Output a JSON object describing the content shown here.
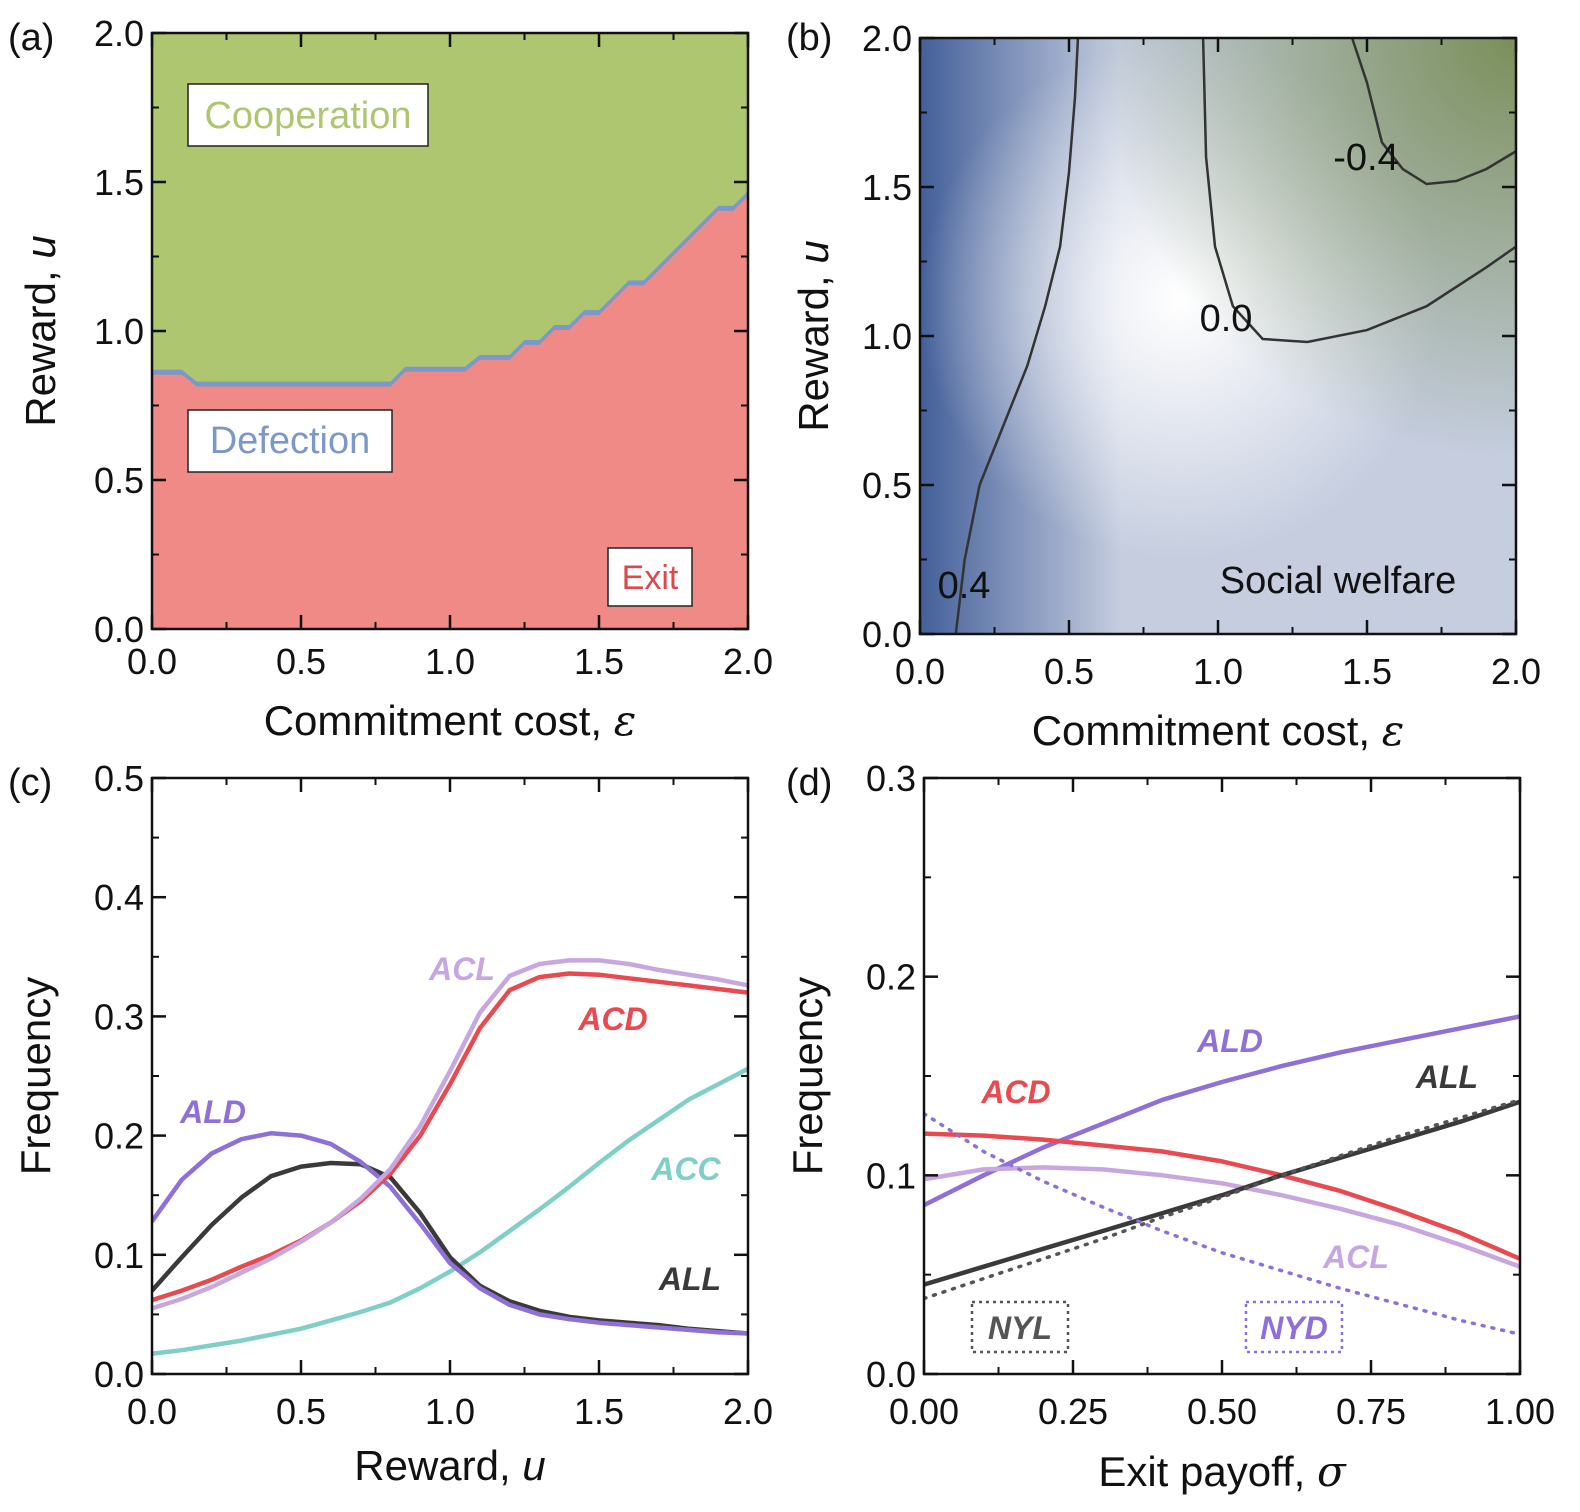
{
  "chart_data": [
    {
      "panel": "(a)",
      "type": "area",
      "xlabel": "Commitment cost, ",
      "xsymbol": "ε",
      "ylabel": "Reward, ",
      "ysymbol": "u",
      "xlim": [
        0,
        2
      ],
      "ylim": [
        0,
        2
      ],
      "xticks": [
        "0.0",
        "0.5",
        "1.0",
        "1.5",
        "2.0"
      ],
      "yticks": [
        "0.0",
        "0.5",
        "1.0",
        "1.5",
        "2.0"
      ],
      "regions": [
        {
          "name": "Cooperation",
          "color": "#aec66f",
          "label_color": "#aec66f"
        },
        {
          "name": "Defection",
          "color": "#7b98c9",
          "label_color": "#7b98c9"
        },
        {
          "name": "Exit",
          "color": "#f08a87",
          "label_color": "#e0474a"
        }
      ],
      "boundary": {
        "x": [
          0,
          0.1,
          0.15,
          0.8,
          0.85,
          1.05,
          1.1,
          1.2,
          1.25,
          1.3,
          1.35,
          1.4,
          1.45,
          1.5,
          1.55,
          1.6,
          1.65,
          1.7,
          1.75,
          1.8,
          1.85,
          1.9,
          1.95,
          2.0
        ],
        "y": [
          0.87,
          0.87,
          0.83,
          0.83,
          0.88,
          0.88,
          0.92,
          0.92,
          0.97,
          0.97,
          1.02,
          1.02,
          1.07,
          1.07,
          1.12,
          1.17,
          1.17,
          1.22,
          1.27,
          1.32,
          1.37,
          1.42,
          1.42,
          1.47
        ]
      }
    },
    {
      "panel": "(b)",
      "type": "heatmap",
      "title": "Social welfare",
      "xlabel": "Commitment cost, ",
      "xsymbol": "ε",
      "ylabel": "Reward, ",
      "ysymbol": "u",
      "xlim": [
        0,
        2
      ],
      "ylim": [
        0,
        2
      ],
      "xticks": [
        "0.0",
        "0.5",
        "1.0",
        "1.5",
        "2.0"
      ],
      "yticks": [
        "0.0",
        "0.5",
        "1.0",
        "1.5",
        "2.0"
      ],
      "colormap": {
        "positive": "#3d5a96",
        "zero": "#ffffff",
        "negative": "#7a8f5a"
      },
      "contours": [
        {
          "level": "0.4",
          "x": [
            0.12,
            0.15,
            0.2,
            0.28,
            0.36,
            0.42,
            0.47,
            0.5,
            0.52,
            0.53
          ],
          "y": [
            0.0,
            0.25,
            0.5,
            0.7,
            0.9,
            1.1,
            1.3,
            1.55,
            1.8,
            2.0
          ]
        },
        {
          "level": "0.0",
          "x": [
            0.95,
            0.96,
            0.99,
            1.05,
            1.15,
            1.3,
            1.5,
            1.7,
            1.9,
            2.0
          ],
          "y": [
            2.0,
            1.6,
            1.3,
            1.1,
            0.99,
            0.98,
            1.02,
            1.1,
            1.23,
            1.3
          ]
        },
        {
          "level": "-0.4",
          "x": [
            1.45,
            1.5,
            1.55,
            1.62,
            1.7,
            1.8,
            1.9,
            2.0
          ],
          "y": [
            2.0,
            1.85,
            1.65,
            1.56,
            1.51,
            1.52,
            1.56,
            1.62
          ]
        }
      ],
      "contour_labels": [
        "0.4",
        "0.0",
        "-0.4"
      ]
    },
    {
      "panel": "(c)",
      "type": "line",
      "xlabel": "Reward, ",
      "xsymbol": "u",
      "ylabel": "Frequency",
      "xlim": [
        0,
        2
      ],
      "ylim": [
        0,
        0.5
      ],
      "xticks": [
        "0.0",
        "0.5",
        "1.0",
        "1.5",
        "2.0"
      ],
      "yticks": [
        "0.0",
        "0.1",
        "0.2",
        "0.3",
        "0.4",
        "0.5"
      ],
      "x": [
        0,
        0.1,
        0.2,
        0.3,
        0.4,
        0.5,
        0.6,
        0.7,
        0.8,
        0.9,
        1.0,
        1.1,
        1.2,
        1.3,
        1.4,
        1.5,
        1.6,
        1.7,
        1.8,
        1.9,
        2.0
      ],
      "series": [
        {
          "name": "ALD",
          "color": "#8f6fd8",
          "values": [
            0.128,
            0.163,
            0.185,
            0.197,
            0.202,
            0.2,
            0.193,
            0.178,
            0.157,
            0.126,
            0.093,
            0.072,
            0.058,
            0.05,
            0.046,
            0.043,
            0.041,
            0.039,
            0.037,
            0.035,
            0.034
          ]
        },
        {
          "name": "ALL",
          "color": "#3a3a3a",
          "values": [
            0.07,
            0.098,
            0.125,
            0.148,
            0.166,
            0.174,
            0.177,
            0.176,
            0.165,
            0.135,
            0.098,
            0.074,
            0.061,
            0.053,
            0.048,
            0.045,
            0.043,
            0.041,
            0.038,
            0.036,
            0.034
          ]
        },
        {
          "name": "ACD",
          "color": "#e84a4f",
          "values": [
            0.062,
            0.07,
            0.079,
            0.09,
            0.1,
            0.112,
            0.127,
            0.145,
            0.168,
            0.2,
            0.243,
            0.29,
            0.322,
            0.333,
            0.336,
            0.335,
            0.332,
            0.329,
            0.326,
            0.323,
            0.32
          ]
        },
        {
          "name": "ACL",
          "color": "#c8a7e0",
          "values": [
            0.055,
            0.063,
            0.073,
            0.085,
            0.097,
            0.111,
            0.127,
            0.147,
            0.172,
            0.208,
            0.254,
            0.303,
            0.334,
            0.344,
            0.347,
            0.347,
            0.344,
            0.339,
            0.335,
            0.331,
            0.326
          ]
        },
        {
          "name": "ACC",
          "color": "#7fcfc6",
          "values": [
            0.017,
            0.02,
            0.024,
            0.028,
            0.033,
            0.038,
            0.045,
            0.052,
            0.06,
            0.072,
            0.086,
            0.102,
            0.12,
            0.138,
            0.157,
            0.177,
            0.196,
            0.213,
            0.23,
            0.243,
            0.256
          ]
        }
      ]
    },
    {
      "panel": "(d)",
      "type": "line",
      "xlabel": "Exit payoff, ",
      "xsymbol": "σ",
      "ylabel": "Frequency",
      "xlim": [
        0,
        1
      ],
      "ylim": [
        0,
        0.3
      ],
      "xticks": [
        "0.00",
        "0.25",
        "0.50",
        "0.75",
        "1.00"
      ],
      "yticks": [
        "0.0",
        "0.1",
        "0.2",
        "0.3"
      ],
      "x": [
        0,
        0.1,
        0.2,
        0.3,
        0.4,
        0.5,
        0.6,
        0.7,
        0.8,
        0.9,
        1.0
      ],
      "series": [
        {
          "name": "ALD",
          "color": "#8f6fd8",
          "style": "solid",
          "values": [
            0.085,
            0.1,
            0.114,
            0.126,
            0.138,
            0.147,
            0.155,
            0.162,
            0.168,
            0.174,
            0.18
          ]
        },
        {
          "name": "ACD",
          "color": "#e84a4f",
          "style": "solid",
          "values": [
            0.121,
            0.12,
            0.118,
            0.115,
            0.112,
            0.107,
            0.1,
            0.092,
            0.082,
            0.071,
            0.058
          ]
        },
        {
          "name": "ACL",
          "color": "#c8a7e0",
          "style": "solid",
          "values": [
            0.098,
            0.103,
            0.104,
            0.103,
            0.1,
            0.096,
            0.09,
            0.083,
            0.075,
            0.065,
            0.054
          ]
        },
        {
          "name": "ALL",
          "color": "#3a3a3a",
          "style": "solid",
          "values": [
            0.045,
            0.054,
            0.063,
            0.072,
            0.081,
            0.09,
            0.1,
            0.109,
            0.118,
            0.127,
            0.137
          ]
        },
        {
          "name": "NYL",
          "color": "#555555",
          "style": "dotted",
          "values": [
            0.038,
            0.048,
            0.058,
            0.068,
            0.079,
            0.089,
            0.1,
            0.11,
            0.12,
            0.129,
            0.138
          ]
        },
        {
          "name": "NYD",
          "color": "#8f6fd8",
          "style": "dotted",
          "values": [
            0.131,
            0.112,
            0.097,
            0.084,
            0.072,
            0.061,
            0.052,
            0.043,
            0.035,
            0.027,
            0.02
          ]
        }
      ]
    }
  ]
}
